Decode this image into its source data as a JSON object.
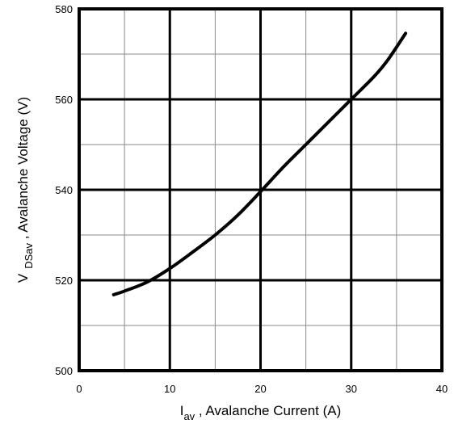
{
  "chart_data": {
    "type": "line",
    "title": "",
    "xlabel": {
      "symbol": "I",
      "subscript": "av",
      "text": " , Avalanche Current  (A)"
    },
    "ylabel": {
      "symbol": "V",
      "subscript": "DSav",
      "text": " , Avalanche Voltage (V)"
    },
    "xlim": [
      0,
      40
    ],
    "ylim": [
      500,
      580
    ],
    "x_ticks": [
      0,
      10,
      20,
      30,
      40
    ],
    "x_tick_labels": [
      "0",
      "10",
      "20",
      "30",
      "40"
    ],
    "y_ticks": [
      500,
      520,
      540,
      560,
      580
    ],
    "y_tick_labels": [
      "500",
      "520",
      "540",
      "560",
      "580"
    ],
    "grid": true,
    "legend": "none",
    "series": [
      {
        "color": "#000000",
        "points": [
          {
            "x": 3.8,
            "y": 516.8
          },
          {
            "x": 5,
            "y": 517.6
          },
          {
            "x": 7.5,
            "y": 519.6
          },
          {
            "x": 10,
            "y": 522.6
          },
          {
            "x": 12.5,
            "y": 526.2
          },
          {
            "x": 15,
            "y": 530.0
          },
          {
            "x": 17.5,
            "y": 534.4
          },
          {
            "x": 20,
            "y": 539.6
          },
          {
            "x": 22.5,
            "y": 545.0
          },
          {
            "x": 25,
            "y": 550.0
          },
          {
            "x": 27.5,
            "y": 555.0
          },
          {
            "x": 30,
            "y": 560.0
          },
          {
            "x": 32.5,
            "y": 565.0
          },
          {
            "x": 34,
            "y": 568.6
          },
          {
            "x": 36,
            "y": 574.6
          }
        ]
      }
    ]
  }
}
